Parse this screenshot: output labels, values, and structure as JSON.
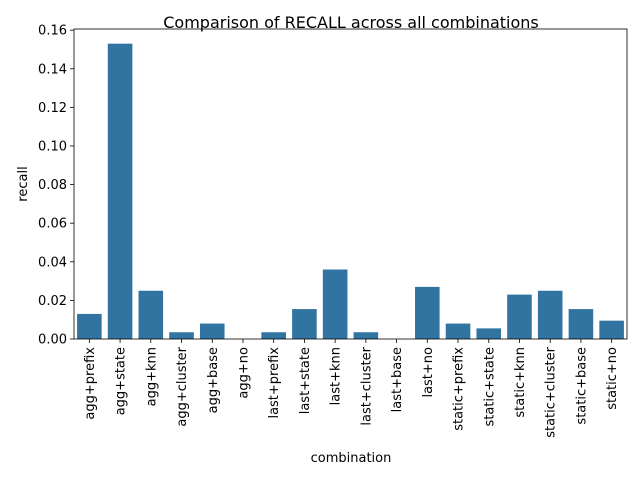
{
  "chart_data": {
    "type": "bar",
    "title": "Comparison of RECALL across all combinations",
    "xlabel": "combination",
    "ylabel": "recall",
    "categories": [
      "agg+prefix",
      "agg+state",
      "agg+knn",
      "agg+cluster",
      "agg+base",
      "agg+no",
      "last+prefix",
      "last+state",
      "last+knn",
      "last+cluster",
      "last+base",
      "last+no",
      "static+prefix",
      "static+state",
      "static+knn",
      "static+cluster",
      "static+base",
      "static+no"
    ],
    "values": [
      0.013,
      0.153,
      0.025,
      0.0035,
      0.008,
      0.0,
      0.0035,
      0.0155,
      0.036,
      0.0035,
      0.0,
      0.027,
      0.008,
      0.0055,
      0.023,
      0.025,
      0.0155,
      0.0095
    ],
    "ylim": [
      0,
      0.1606
    ],
    "yticks": [
      "0.00",
      "0.02",
      "0.04",
      "0.06",
      "0.08",
      "0.10",
      "0.12",
      "0.14",
      "0.16"
    ],
    "bar_color": "#3274a1",
    "grid": false,
    "legend": false
  }
}
